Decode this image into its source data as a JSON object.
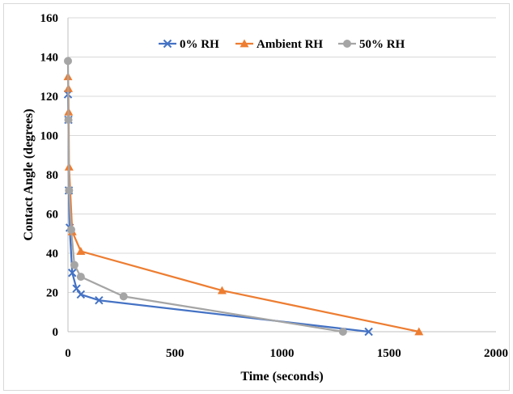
{
  "chart_data": {
    "type": "scatter",
    "xlabel": "Time (seconds)",
    "ylabel": "Contact Angle (degrees)",
    "xlim": [
      0,
      2000
    ],
    "ylim": [
      0,
      160
    ],
    "x_ticks": [
      "0",
      "500",
      "1000",
      "1500",
      "2000"
    ],
    "y_ticks": [
      "0",
      "20",
      "40",
      "60",
      "80",
      "100",
      "120",
      "140",
      "160"
    ],
    "grid": "horizontal",
    "legend_position": "top",
    "series": [
      {
        "name": "0% RH",
        "marker": "x",
        "color": "#4472C4",
        "points": [
          [
            0,
            121
          ],
          [
            2,
            108
          ],
          [
            4,
            72
          ],
          [
            8,
            53
          ],
          [
            20,
            30
          ],
          [
            40,
            22
          ],
          [
            60,
            19
          ],
          [
            145,
            16
          ],
          [
            1405,
            0
          ]
        ]
      },
      {
        "name": "Ambient RH",
        "marker": "triangle",
        "color": "#ED7D31",
        "points": [
          [
            0,
            130
          ],
          [
            2,
            124
          ],
          [
            3,
            112
          ],
          [
            5,
            84
          ],
          [
            20,
            51
          ],
          [
            60,
            41
          ],
          [
            720,
            21
          ],
          [
            1640,
            0
          ]
        ]
      },
      {
        "name": "50% RH",
        "marker": "circle",
        "color": "#A5A5A5",
        "points": [
          [
            0,
            138
          ],
          [
            2,
            108
          ],
          [
            5,
            72
          ],
          [
            15,
            52
          ],
          [
            30,
            34
          ],
          [
            60,
            28
          ],
          [
            260,
            18
          ],
          [
            1285,
            0
          ]
        ]
      }
    ]
  }
}
